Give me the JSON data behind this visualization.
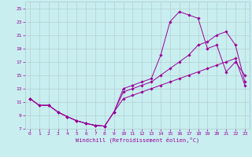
{
  "xlabel": "Windchill (Refroidissement éolien,°C)",
  "bg_color": "#c8eef0",
  "grid_color": "#b0c8c8",
  "line_color": "#990099",
  "xlim": [
    -0.5,
    23.5
  ],
  "ylim": [
    7,
    26
  ],
  "xticks": [
    0,
    1,
    2,
    3,
    4,
    5,
    6,
    7,
    8,
    9,
    10,
    11,
    12,
    13,
    14,
    15,
    16,
    17,
    18,
    19,
    20,
    21,
    22,
    23
  ],
  "yticks": [
    7,
    9,
    11,
    13,
    15,
    17,
    19,
    21,
    23,
    25
  ],
  "line1_x": [
    0,
    1,
    2,
    3,
    4,
    5,
    6,
    7,
    8,
    9,
    10,
    11,
    12,
    13,
    14,
    15,
    16,
    17,
    18,
    19,
    20,
    21,
    22,
    23
  ],
  "line1_y": [
    11.5,
    10.5,
    10.5,
    9.5,
    8.8,
    8.2,
    7.8,
    7.5,
    7.4,
    9.5,
    13.0,
    13.5,
    14.0,
    14.5,
    18.0,
    23.0,
    24.5,
    24.0,
    23.5,
    19.0,
    19.5,
    15.5,
    17.0,
    15.0
  ],
  "line2_x": [
    0,
    1,
    2,
    3,
    4,
    5,
    6,
    7,
    8,
    9,
    10,
    11,
    12,
    13,
    14,
    15,
    16,
    17,
    18,
    19,
    20,
    21,
    22,
    23
  ],
  "line2_y": [
    11.5,
    10.5,
    10.5,
    9.5,
    8.8,
    8.2,
    7.8,
    7.5,
    7.4,
    9.5,
    12.5,
    13.0,
    13.5,
    14.0,
    15.0,
    16.0,
    17.0,
    18.0,
    19.5,
    20.0,
    21.0,
    21.5,
    19.5,
    14.0
  ],
  "line3_x": [
    0,
    1,
    2,
    3,
    4,
    5,
    6,
    7,
    8,
    9,
    10,
    11,
    12,
    13,
    14,
    15,
    16,
    17,
    18,
    19,
    20,
    21,
    22,
    23
  ],
  "line3_y": [
    11.5,
    10.5,
    10.5,
    9.5,
    8.8,
    8.2,
    7.8,
    7.5,
    7.4,
    9.5,
    11.5,
    12.0,
    12.5,
    13.0,
    13.5,
    14.0,
    14.5,
    15.0,
    15.5,
    16.0,
    16.5,
    17.0,
    17.5,
    13.5
  ],
  "tick_fontsize": 4.5,
  "xlabel_fontsize": 5.0,
  "marker_size": 1.8,
  "line_width": 0.7
}
